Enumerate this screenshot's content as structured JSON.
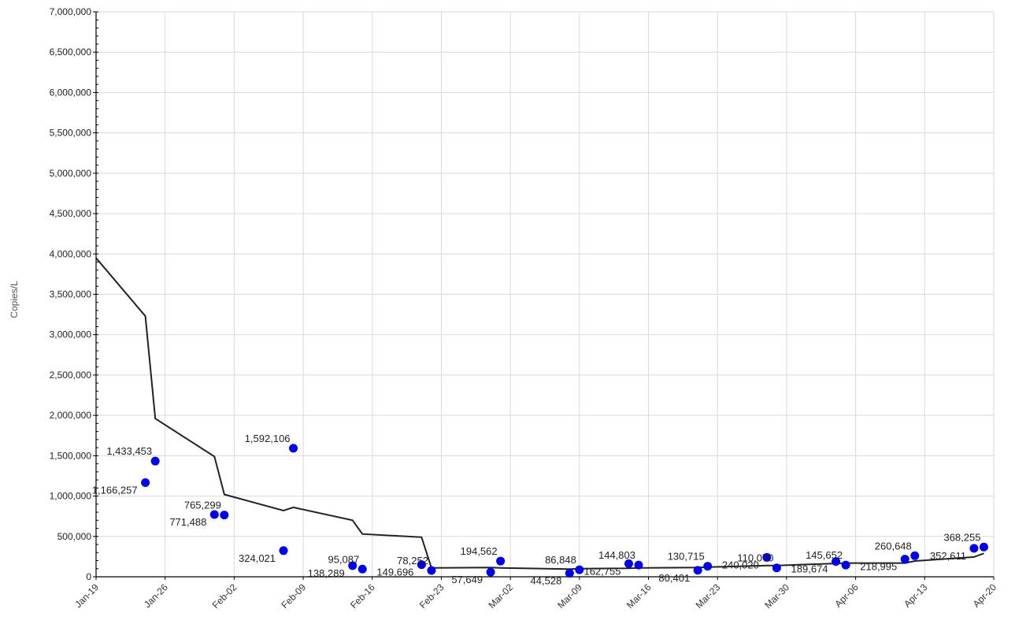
{
  "chart_data": {
    "type": "scatter",
    "title": "",
    "xlabel": "",
    "ylabel": "Copies/L",
    "ylim": [
      0,
      7000000
    ],
    "xlim": [
      "2021-01-19",
      "2021-04-20"
    ],
    "grid": true,
    "legend": "none",
    "colors": {
      "points": "#0000ee",
      "trend": "#222222",
      "grid": "#d9d9d9"
    },
    "y_ticks": [
      "0",
      "500,000",
      "1,000,000",
      "1,500,000",
      "2,000,000",
      "2,500,000",
      "3,000,000",
      "3,500,000",
      "4,000,000",
      "4,500,000",
      "5,000,000",
      "5,500,000",
      "6,000,000",
      "6,500,000",
      "7,000,000"
    ],
    "x_ticks": [
      "Jan-19",
      "Jan-26",
      "Feb-02",
      "Feb-09",
      "Feb-16",
      "Feb-23",
      "Mar-02",
      "Mar-09",
      "Mar-16",
      "Mar-23",
      "Mar-30",
      "Apr-06",
      "Apr-13",
      "Apr-20"
    ],
    "series": [
      {
        "type": "scatter",
        "points": [
          {
            "x": "2021-01-24",
            "y": 1166257,
            "label": "1,166,257"
          },
          {
            "x": "2021-01-25",
            "y": 1433453,
            "label": "1,433,453"
          },
          {
            "x": "2021-01-31",
            "y": 771488,
            "label": "771,488"
          },
          {
            "x": "2021-02-01",
            "y": 765299,
            "label": "765,299"
          },
          {
            "x": "2021-02-07",
            "y": 324021,
            "label": "324,021"
          },
          {
            "x": "2021-02-08",
            "y": 1592106,
            "label": "1,592,106"
          },
          {
            "x": "2021-02-14",
            "y": 138289,
            "label": "138,289"
          },
          {
            "x": "2021-02-15",
            "y": 95087,
            "label": "95,087"
          },
          {
            "x": "2021-02-21",
            "y": 149696,
            "label": "149,696"
          },
          {
            "x": "2021-02-22",
            "y": 78252,
            "label": "78,252"
          },
          {
            "x": "2021-02-28",
            "y": 57649,
            "label": "57,649"
          },
          {
            "x": "2021-03-01",
            "y": 194562,
            "label": "194,562"
          },
          {
            "x": "2021-03-08",
            "y": 44528,
            "label": "44,528"
          },
          {
            "x": "2021-03-09",
            "y": 86848,
            "label": "86,848"
          },
          {
            "x": "2021-03-14",
            "y": 162755,
            "label": "162,755"
          },
          {
            "x": "2021-03-15",
            "y": 144803,
            "label": "144,803"
          },
          {
            "x": "2021-03-21",
            "y": 80401,
            "label": "80,401"
          },
          {
            "x": "2021-03-22",
            "y": 130715,
            "label": "130,715"
          },
          {
            "x": "2021-03-28",
            "y": 240020,
            "label": "240,020"
          },
          {
            "x": "2021-03-29",
            "y": 110070,
            "label": "110,070"
          },
          {
            "x": "2021-04-04",
            "y": 189674,
            "label": "189,674"
          },
          {
            "x": "2021-04-05",
            "y": 145652,
            "label": "145,652"
          },
          {
            "x": "2021-04-11",
            "y": 218995,
            "label": "218,995"
          },
          {
            "x": "2021-04-12",
            "y": 260648,
            "label": "260,648"
          },
          {
            "x": "2021-04-18",
            "y": 352611,
            "label": "352,611"
          },
          {
            "x": "2021-04-19",
            "y": 368255,
            "label": "368,255"
          }
        ]
      },
      {
        "type": "line",
        "points": [
          {
            "x": "2021-01-19",
            "y": 3950000
          },
          {
            "x": "2021-01-24",
            "y": 3230000
          },
          {
            "x": "2021-01-25",
            "y": 1960000
          },
          {
            "x": "2021-01-31",
            "y": 1490000
          },
          {
            "x": "2021-02-01",
            "y": 1020000
          },
          {
            "x": "2021-02-07",
            "y": 820000
          },
          {
            "x": "2021-02-08",
            "y": 860000
          },
          {
            "x": "2021-02-14",
            "y": 700000
          },
          {
            "x": "2021-02-15",
            "y": 530000
          },
          {
            "x": "2021-02-21",
            "y": 490000
          },
          {
            "x": "2021-02-22",
            "y": 110000
          },
          {
            "x": "2021-02-28",
            "y": 115000
          },
          {
            "x": "2021-03-01",
            "y": 110000
          },
          {
            "x": "2021-03-08",
            "y": 95000
          },
          {
            "x": "2021-03-09",
            "y": 100000
          },
          {
            "x": "2021-03-14",
            "y": 105000
          },
          {
            "x": "2021-03-15",
            "y": 110000
          },
          {
            "x": "2021-03-21",
            "y": 115000
          },
          {
            "x": "2021-03-22",
            "y": 120000
          },
          {
            "x": "2021-03-28",
            "y": 140000
          },
          {
            "x": "2021-03-29",
            "y": 140000
          },
          {
            "x": "2021-04-04",
            "y": 165000
          },
          {
            "x": "2021-04-05",
            "y": 170000
          },
          {
            "x": "2021-04-11",
            "y": 170000
          },
          {
            "x": "2021-04-12",
            "y": 195000
          },
          {
            "x": "2021-04-18",
            "y": 245000
          },
          {
            "x": "2021-04-19",
            "y": 290000
          }
        ]
      }
    ]
  }
}
